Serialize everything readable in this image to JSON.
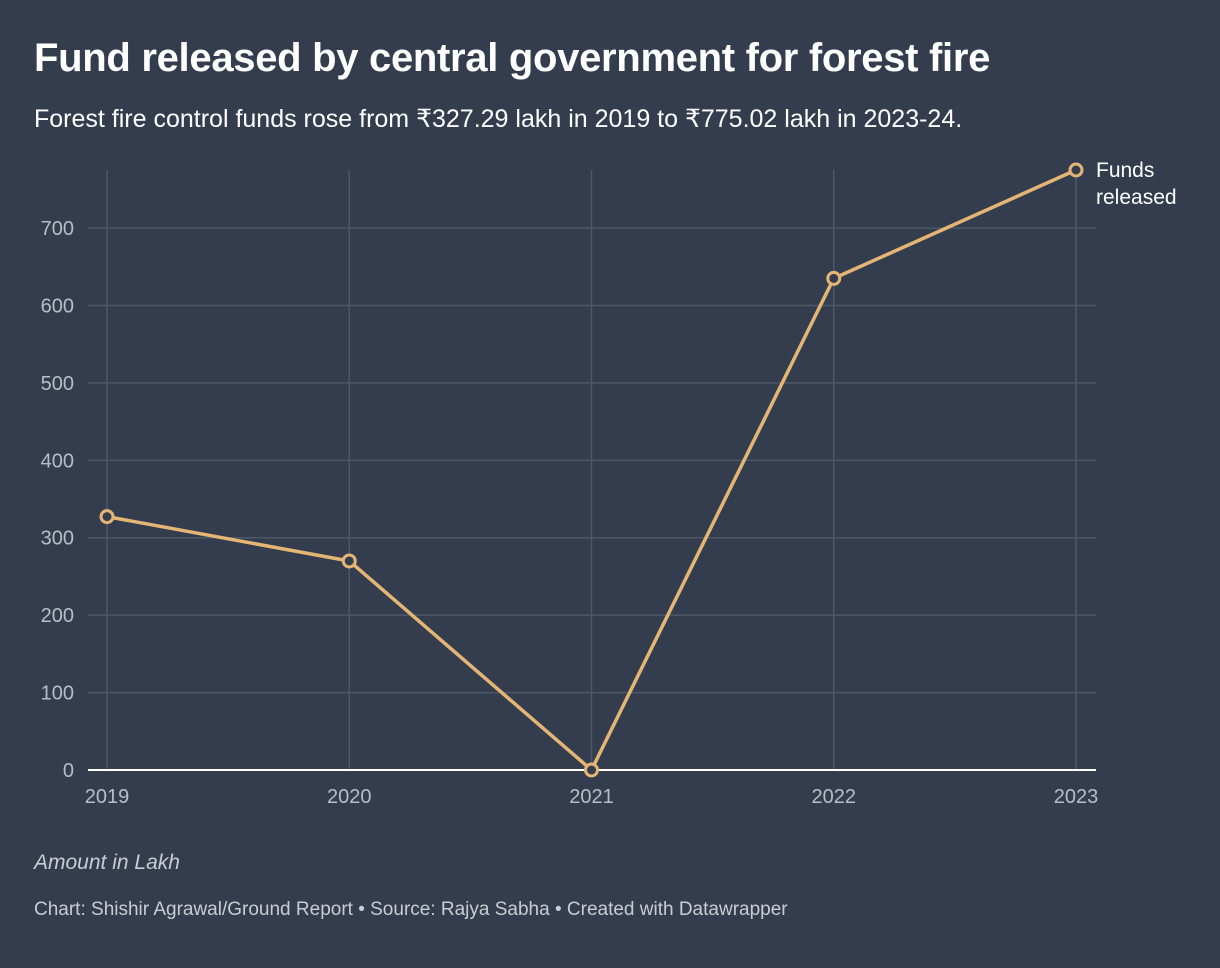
{
  "title": "Fund released by central government for forest fire",
  "subtitle": "Forest fire control funds rose from ₹327.29 lakh in 2019 to ₹775.02 lakh in 2023-24.",
  "note": "Amount in Lakh",
  "footer": "Chart: Shishir Agrawal/Ground Report • Source: Rajya Sabha • Created with Datawrapper",
  "colors": {
    "background": "#343d4d",
    "line": "#e4b574",
    "grid": "#4e5768",
    "axis": "#ffffff"
  },
  "chart_data": {
    "type": "line",
    "title": "Fund released by central government for forest fire",
    "xlabel": "",
    "ylabel": "Amount in Lakh",
    "x": [
      "2019",
      "2020",
      "2021",
      "2022",
      "2023"
    ],
    "series": [
      {
        "name": "Funds released",
        "label_lines": [
          "Funds",
          "released"
        ],
        "values": [
          327.29,
          270,
          0,
          635,
          775.02
        ]
      }
    ],
    "yticks": [
      0,
      100,
      200,
      300,
      400,
      500,
      600,
      700
    ],
    "ylim": [
      0,
      775.02
    ],
    "grid": true,
    "legend": "direct label at end of line (right)"
  }
}
